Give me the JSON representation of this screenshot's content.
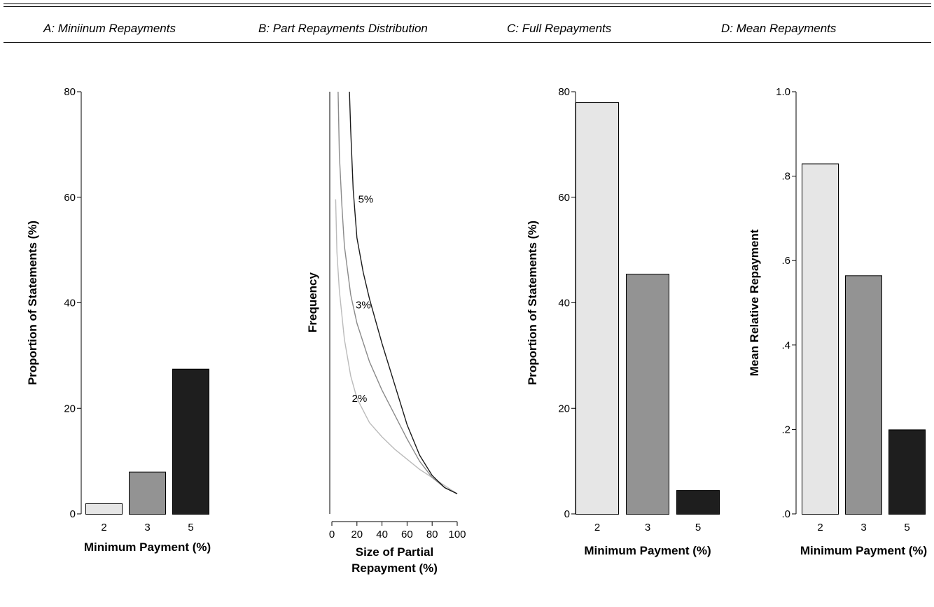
{
  "panels": {
    "a": {
      "title": "A: Miniinum Repayments"
    },
    "b": {
      "title": "B: Part Repayments Distribution"
    },
    "c": {
      "title": "C: Full Repayments"
    },
    "d": {
      "title": "D: Mean Repayments"
    }
  },
  "chart_data": [
    {
      "id": "a",
      "type": "bar",
      "title": "A: Miniinum Repayments",
      "categories": [
        "2",
        "3",
        "5"
      ],
      "values": [
        2,
        8,
        27.5
      ],
      "bar_colors": [
        "#e6e6e6",
        "#939393",
        "#1e1e1e"
      ],
      "xlabel": "Minimum Payment (%)",
      "ylabel": "Proportion of Statements (%)",
      "ylim": [
        0,
        80
      ],
      "yticks": [
        0,
        20,
        40,
        60,
        80
      ],
      "ytick_labels": [
        "0",
        "20",
        "40",
        "60",
        "80"
      ],
      "grid": false
    },
    {
      "id": "b",
      "type": "line",
      "title": "B: Part Repayments Distribution",
      "xlabel": "Size of Partial Repayment (%)",
      "ylabel": "Frequency",
      "xlim": [
        0,
        100
      ],
      "xticks": [
        0,
        20,
        40,
        60,
        80,
        100
      ],
      "xtick_labels": [
        "0",
        "20",
        "40",
        "60",
        "80",
        "100"
      ],
      "ylim": [
        0,
        1
      ],
      "y_tick_labels_shown": false,
      "series": [
        {
          "name": "2%",
          "color": "#bbbbbb",
          "x": [
            3,
            4,
            6,
            10,
            15,
            20,
            30,
            40,
            50,
            60,
            70,
            80,
            90,
            100
          ],
          "y": [
            0.735,
            0.605,
            0.51,
            0.39,
            0.3,
            0.245,
            0.185,
            0.15,
            0.12,
            0.095,
            0.07,
            0.05,
            0.03,
            0.01
          ]
        },
        {
          "name": "3%",
          "color": "#8a8a8a",
          "x": [
            5,
            6,
            8,
            10,
            15,
            20,
            30,
            40,
            50,
            60,
            70,
            80,
            90,
            100
          ],
          "y": [
            1.0,
            0.845,
            0.72,
            0.62,
            0.5,
            0.43,
            0.335,
            0.265,
            0.205,
            0.145,
            0.09,
            0.05,
            0.025,
            0.01
          ]
        },
        {
          "name": "5%",
          "color": "#1a1a1a",
          "x": [
            14,
            15,
            17,
            20,
            25,
            30,
            40,
            50,
            60,
            70,
            80,
            90,
            100
          ],
          "y": [
            1.0,
            0.905,
            0.76,
            0.64,
            0.555,
            0.49,
            0.38,
            0.28,
            0.18,
            0.105,
            0.055,
            0.025,
            0.01
          ]
        }
      ],
      "annotations": [
        {
          "text": "5%",
          "x": 21,
          "y": 0.735
        },
        {
          "text": "3%",
          "x": 19,
          "y": 0.475
        },
        {
          "text": "2%",
          "x": 16,
          "y": 0.245
        }
      ],
      "grid": false
    },
    {
      "id": "c",
      "type": "bar",
      "title": "C: Full Repayments",
      "categories": [
        "2",
        "3",
        "5"
      ],
      "values": [
        78,
        45.5,
        4.5
      ],
      "bar_colors": [
        "#e6e6e6",
        "#939393",
        "#1e1e1e"
      ],
      "xlabel": "Minimum Payment (%)",
      "ylabel": "Proportion of Statements (%)",
      "ylim": [
        0,
        80
      ],
      "yticks": [
        0,
        20,
        40,
        60,
        80
      ],
      "ytick_labels": [
        "0",
        "20",
        "40",
        "60",
        "80"
      ],
      "grid": false
    },
    {
      "id": "d",
      "type": "bar",
      "title": "D: Mean Repayments",
      "categories": [
        "2",
        "3",
        "5"
      ],
      "values": [
        0.83,
        0.565,
        0.2
      ],
      "bar_colors": [
        "#e6e6e6",
        "#939393",
        "#1e1e1e"
      ],
      "xlabel": "Minimum Payment (%)",
      "ylabel": "Mean Relative Repayment",
      "ylim": [
        0,
        1
      ],
      "yticks": [
        0,
        0.2,
        0.4,
        0.6,
        0.8,
        1.0
      ],
      "ytick_labels": [
        ".0",
        ".2",
        ".4",
        ".6",
        ".8",
        "1.0"
      ],
      "grid": false
    }
  ]
}
